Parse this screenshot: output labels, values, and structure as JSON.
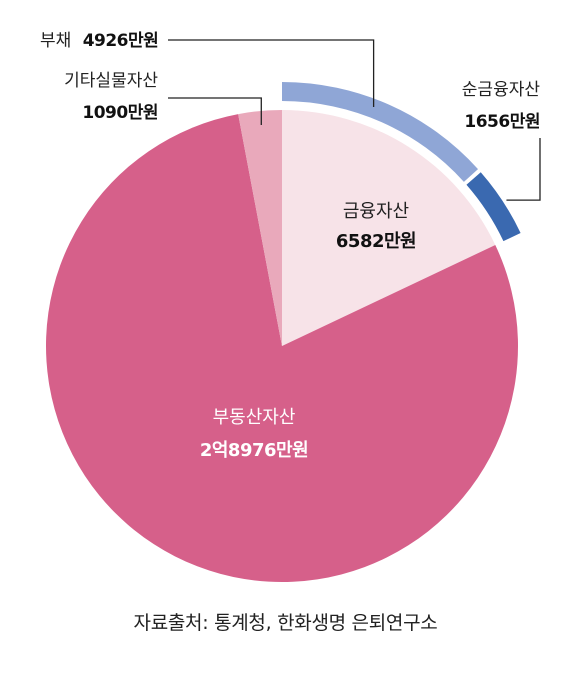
{
  "chart_data": {
    "type": "pie",
    "unit": "만원",
    "slices": [
      {
        "id": "financial",
        "name": "금융자산",
        "value_text": "6582만원",
        "value": 6582,
        "color": "#f7e3e8"
      },
      {
        "id": "realestate",
        "name": "부동산자산",
        "value_text": "2억8976만원",
        "value": 28976,
        "color": "#d6608a"
      },
      {
        "id": "other",
        "name": "기타실물자산",
        "value_text": "1090만원",
        "value": 1090,
        "color": "#e9a9bb"
      }
    ],
    "financial_breakdown": [
      {
        "id": "debt",
        "name": "부채",
        "value_text": "4926만원",
        "value": 4926,
        "color": "#8fa6d6"
      },
      {
        "id": "net",
        "name": "순금융자산",
        "value_text": "1656만원",
        "value": 1656,
        "color": "#3a69b0"
      }
    ]
  },
  "source": "자료출처: 통계청, 한화생명 은퇴연구소"
}
